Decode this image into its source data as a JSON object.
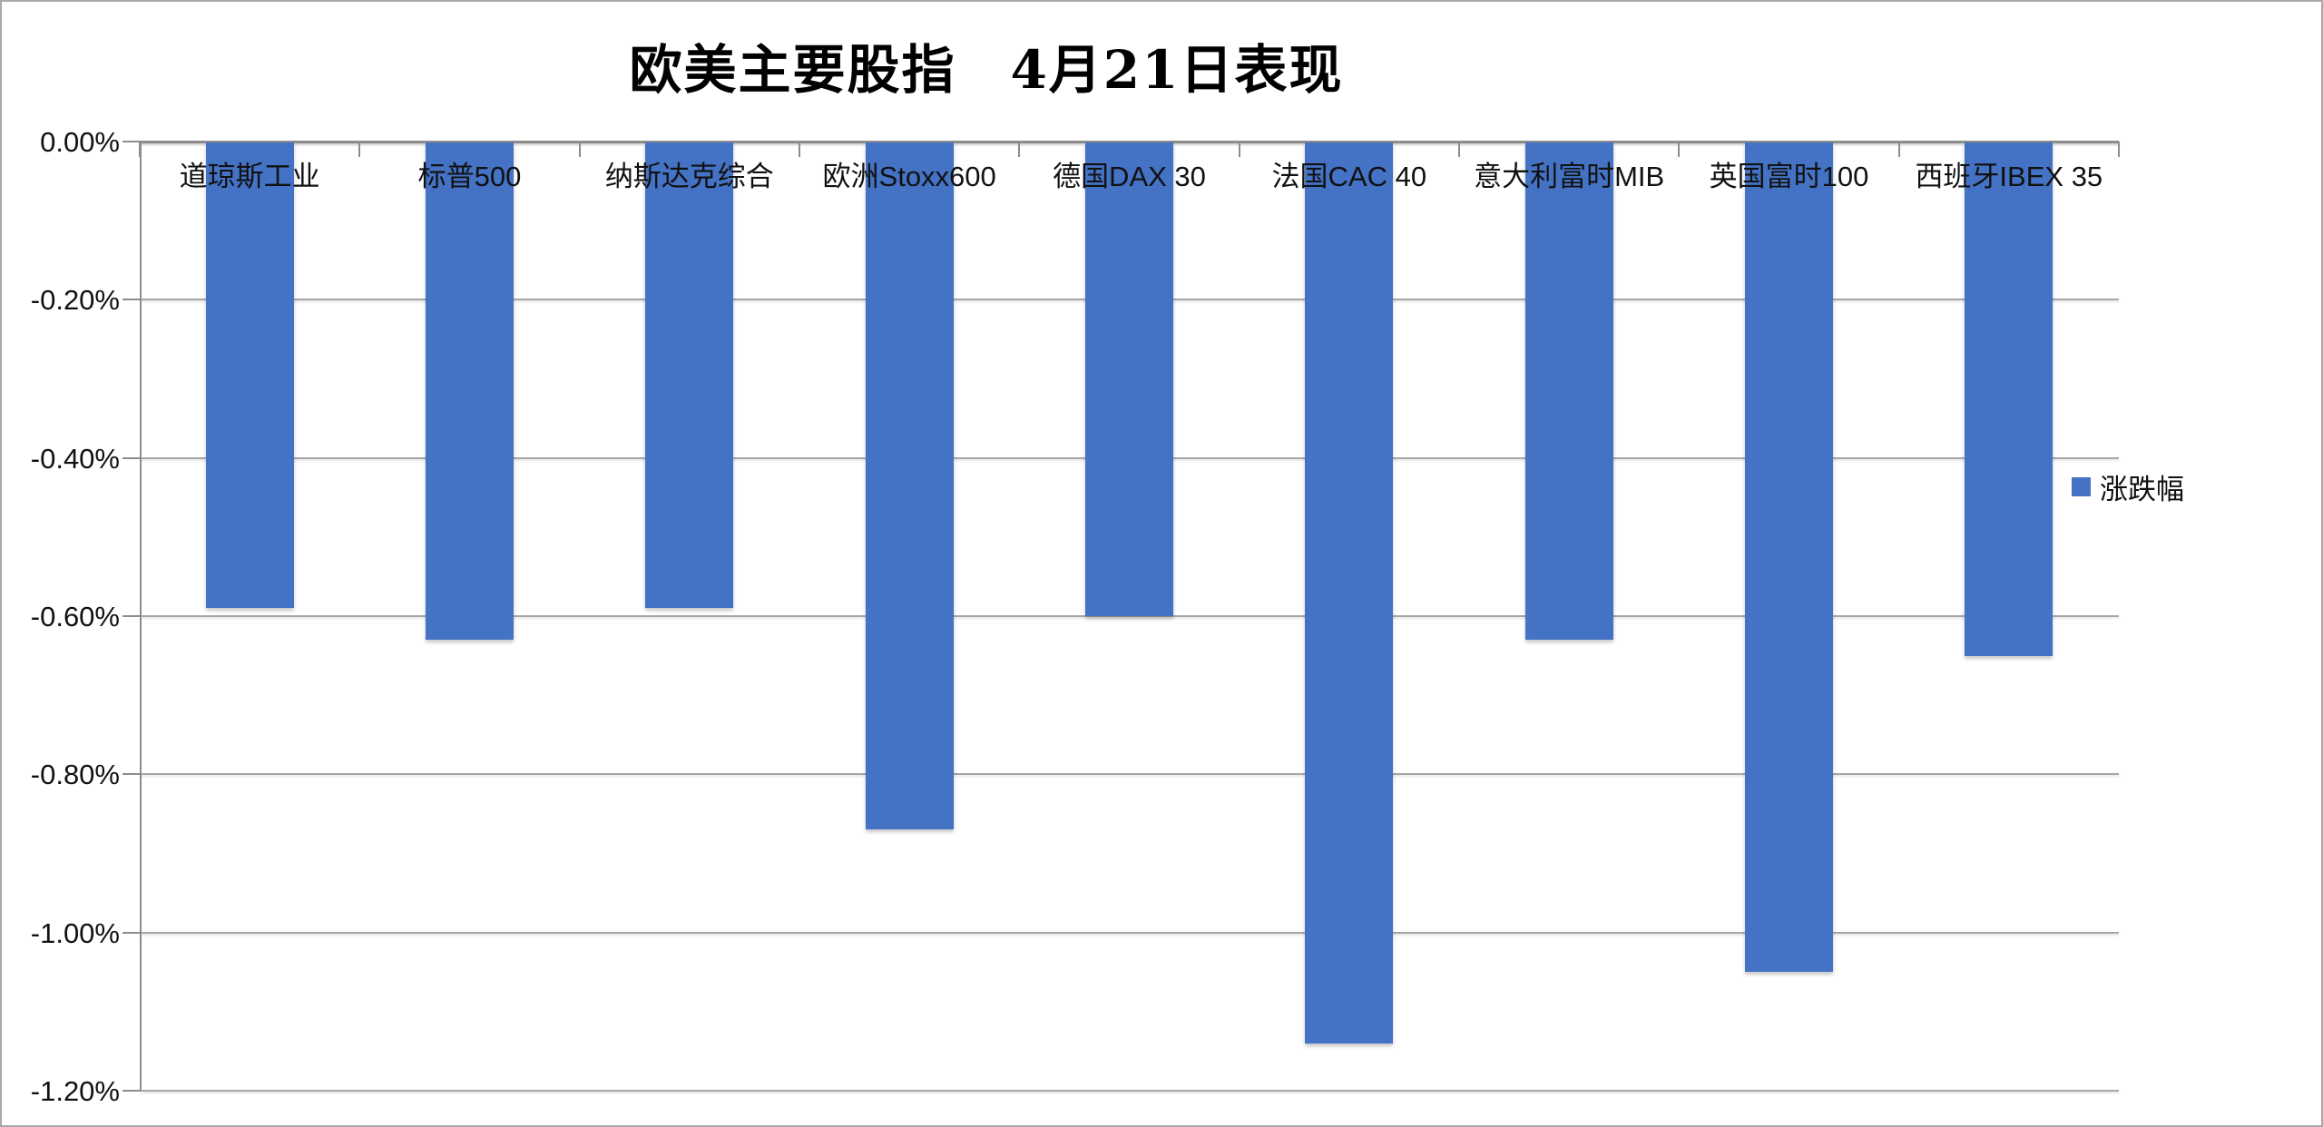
{
  "chart_data": {
    "type": "bar",
    "title": "欧美主要股指　4月21日表现",
    "categories": [
      "道琼斯工业",
      "标普500",
      "纳斯达克综合",
      "欧洲Stoxx600",
      "德国DAX 30",
      "法国CAC 40",
      "意大利富时MIB",
      "英国富时100",
      "西班牙IBEX 35"
    ],
    "series": [
      {
        "name": "涨跌幅",
        "values": [
          -0.59,
          -0.63,
          -0.59,
          -0.87,
          -0.6,
          -1.14,
          -0.63,
          -1.05,
          -0.65
        ]
      }
    ],
    "value_unit": "%",
    "ylim": [
      -1.2,
      0
    ],
    "yticks": [
      0,
      -0.2,
      -0.4,
      -0.6,
      -0.8,
      -1.0,
      -1.2
    ],
    "ytick_labels": [
      "0.00%",
      "-0.20%",
      "-0.40%",
      "-0.60%",
      "-0.80%",
      "-1.00%",
      "-1.20%"
    ],
    "grid": true,
    "legend_position": "right",
    "legend_label": "涨跌幅",
    "colors": {
      "bar": "#4472C4",
      "gridline": "#a6a6a6",
      "axis": "#8c8c8c",
      "text": "#111111",
      "title": "#000000",
      "background": "#ffffff",
      "border": "#a9a9a9"
    }
  }
}
